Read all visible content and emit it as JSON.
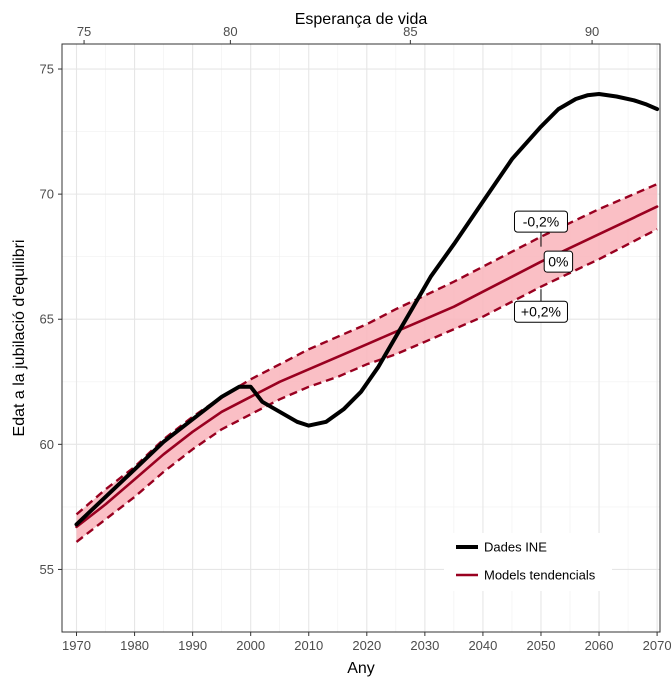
{
  "chart_data": {
    "type": "line",
    "xlabel": "Any",
    "x2label": "Esperança de vida",
    "ylabel": "Edat a la jubilació d'equilibri",
    "xlim": [
      1967.5,
      2070.5
    ],
    "ylim": [
      52.5,
      76
    ],
    "x_ticks": [
      1970,
      1980,
      1990,
      2000,
      2010,
      2020,
      2030,
      2040,
      2050,
      2060,
      2070
    ],
    "x_minor_ticks": [
      1975,
      1985,
      1995,
      2005,
      2015,
      2025,
      2035,
      2045,
      2055,
      2065
    ],
    "y_ticks": [
      55,
      60,
      65,
      70,
      75
    ],
    "y_minor_ticks": [
      57.5,
      62.5,
      67.5,
      72.5
    ],
    "x2_ticks": [
      {
        "label": "75",
        "x": 1971.3
      },
      {
        "label": "80",
        "x": 1996.5
      },
      {
        "label": "85",
        "x": 2027.5
      },
      {
        "label": "90",
        "x": 2058.8
      }
    ],
    "grid": true,
    "legend_position": "bottom-right",
    "series": [
      {
        "name": "Dades INE",
        "color": "#000000",
        "style": "solid",
        "x": [
          1970,
          1975,
          1980,
          1985,
          1990,
          1995,
          1998,
          2000,
          2002,
          2005,
          2008,
          2010,
          2013,
          2016,
          2019,
          2022,
          2025,
          2028,
          2031,
          2035,
          2040,
          2045,
          2050,
          2053,
          2056,
          2058,
          2060,
          2063,
          2066,
          2068,
          2070
        ],
        "y": [
          56.8,
          57.9,
          59.0,
          60.1,
          61.0,
          61.9,
          62.3,
          62.3,
          61.7,
          61.3,
          60.9,
          60.75,
          60.9,
          61.4,
          62.1,
          63.1,
          64.3,
          65.5,
          66.7,
          68.0,
          69.7,
          71.4,
          72.7,
          73.4,
          73.8,
          73.95,
          74.0,
          73.9,
          73.75,
          73.6,
          73.4
        ]
      },
      {
        "name": "Models tendencials",
        "color": "#990020",
        "style": "solid",
        "x": [
          1970,
          1975,
          1980,
          1985,
          1990,
          1995,
          2000,
          2005,
          2010,
          2015,
          2020,
          2025,
          2030,
          2035,
          2040,
          2045,
          2050,
          2055,
          2060,
          2065,
          2070
        ],
        "y": [
          56.7,
          57.6,
          58.6,
          59.6,
          60.5,
          61.3,
          61.9,
          62.5,
          63.0,
          63.5,
          64.0,
          64.5,
          65.0,
          65.5,
          66.1,
          66.7,
          67.3,
          67.85,
          68.4,
          68.95,
          69.5
        ]
      },
      {
        "name": "-0,2%",
        "color": "#990020",
        "style": "dashed",
        "x": [
          1970,
          1975,
          1980,
          1985,
          1990,
          1995,
          2000,
          2005,
          2010,
          2015,
          2020,
          2025,
          2030,
          2035,
          2040,
          2045,
          2050,
          2055,
          2060,
          2065,
          2070
        ],
        "y": [
          57.2,
          58.2,
          59.1,
          60.2,
          61.1,
          61.9,
          62.6,
          63.2,
          63.8,
          64.3,
          64.8,
          65.4,
          65.95,
          66.5,
          67.1,
          67.7,
          68.3,
          68.85,
          69.4,
          69.9,
          70.4
        ]
      },
      {
        "name": "+0,2%",
        "color": "#990020",
        "style": "dashed",
        "x": [
          1970,
          1975,
          1980,
          1985,
          1990,
          1995,
          2000,
          2005,
          2010,
          2015,
          2020,
          2025,
          2030,
          2035,
          2040,
          2045,
          2050,
          2055,
          2060,
          2065,
          2070
        ],
        "y": [
          56.1,
          57.0,
          57.9,
          58.9,
          59.8,
          60.6,
          61.2,
          61.8,
          62.3,
          62.7,
          63.2,
          63.6,
          64.1,
          64.6,
          65.1,
          65.7,
          66.3,
          66.85,
          67.4,
          68.0,
          68.6
        ]
      }
    ],
    "band": {
      "color": "#f9b4bb",
      "lower_series": "+0,2%",
      "upper_series": "-0,2%"
    },
    "annotations": [
      {
        "text": "-0,2%",
        "x": 2050,
        "y": 68.9,
        "pointer_y": 67.9
      },
      {
        "text": "0%",
        "x": 2053,
        "y": 67.3,
        "pointer_y": null
      },
      {
        "text": "+0,2%",
        "x": 2050,
        "y": 65.3,
        "pointer_y": 66.2
      }
    ],
    "legend": [
      {
        "label": "Dades INE",
        "color": "#000000",
        "width": "thick"
      },
      {
        "label": "Models tendencials",
        "color": "#990020",
        "width": "medium"
      }
    ]
  }
}
